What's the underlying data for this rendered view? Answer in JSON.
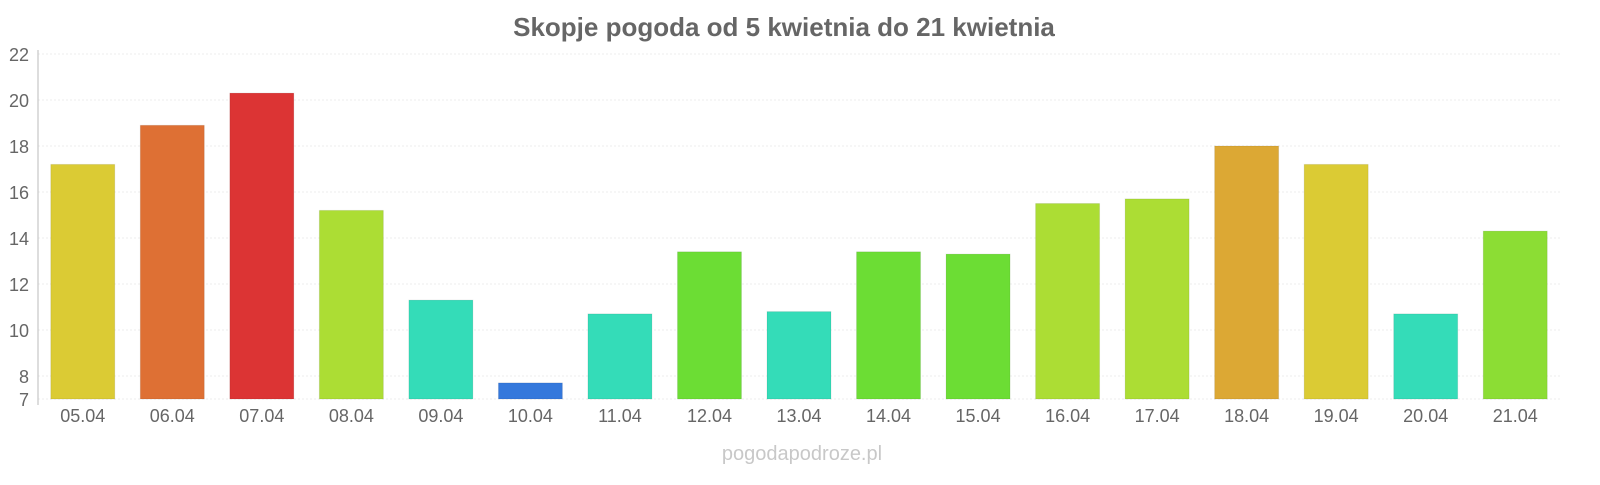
{
  "chart_data": {
    "type": "bar",
    "title": "Skopje pogoda od 5 kwietnia do 21 kwietnia",
    "xlabel": "",
    "ylabel": "",
    "ylim": [
      7,
      22
    ],
    "yticks": [
      7,
      8,
      10,
      12,
      14,
      16,
      18,
      20,
      22
    ],
    "grid": true,
    "categories": [
      "05.04",
      "06.04",
      "07.04",
      "08.04",
      "09.04",
      "10.04",
      "11.04",
      "12.04",
      "13.04",
      "14.04",
      "15.04",
      "16.04",
      "17.04",
      "18.04",
      "19.04",
      "20.04",
      "21.04"
    ],
    "values": [
      17.2,
      18.9,
      20.3,
      15.2,
      11.3,
      7.7,
      10.7,
      13.4,
      10.8,
      13.4,
      13.3,
      15.5,
      15.7,
      18.0,
      17.2,
      10.7,
      14.3
    ],
    "colors": [
      "#dbcb34",
      "#de7034",
      "#dc3434",
      "#acdd34",
      "#34dcb8",
      "#3478dc",
      "#34dcb8",
      "#6cdd34",
      "#34dcb8",
      "#6cdd34",
      "#6cdd34",
      "#acdd34",
      "#acdd34",
      "#dca834",
      "#dbcb34",
      "#34dcb8",
      "#8cdd34"
    ],
    "watermark": "pogodapodroze.pl"
  }
}
